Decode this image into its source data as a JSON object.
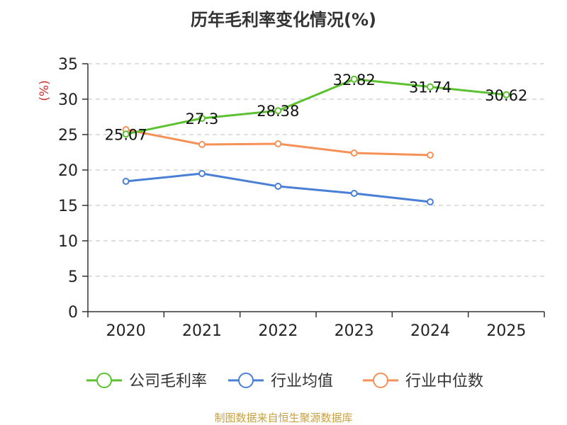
{
  "chart_data": {
    "type": "line",
    "title": "历年毛利率变化情况(%)",
    "ylabel": "(%)",
    "xlabel": "",
    "categories": [
      "2020",
      "2021",
      "2022",
      "2023",
      "2024",
      "2025"
    ],
    "yticks": [
      "0",
      "5",
      "10",
      "15",
      "20",
      "25",
      "30",
      "35"
    ],
    "ylim": [
      0,
      35
    ],
    "grid": true,
    "legend_position": "bottom",
    "series": [
      {
        "name": "公司毛利率",
        "color": "#5cc130",
        "values": [
          25.07,
          27.3,
          28.38,
          32.82,
          31.74,
          30.62
        ],
        "labels": [
          "25.07",
          "27.3",
          "28.38",
          "32.82",
          "31.74",
          "30.62"
        ]
      },
      {
        "name": "行业均值",
        "color": "#4a7fd6",
        "values": [
          18.4,
          19.5,
          17.7,
          16.7,
          15.5,
          null
        ]
      },
      {
        "name": "行业中位数",
        "color": "#f59157",
        "values": [
          25.7,
          23.6,
          23.7,
          22.4,
          22.1,
          null
        ]
      }
    ]
  },
  "footer": {
    "source": "制图数据来自恒生聚源数据库"
  },
  "colors": {
    "axis": "#333333",
    "grid": "#cccccc",
    "ylabel": "#d42a2a"
  }
}
